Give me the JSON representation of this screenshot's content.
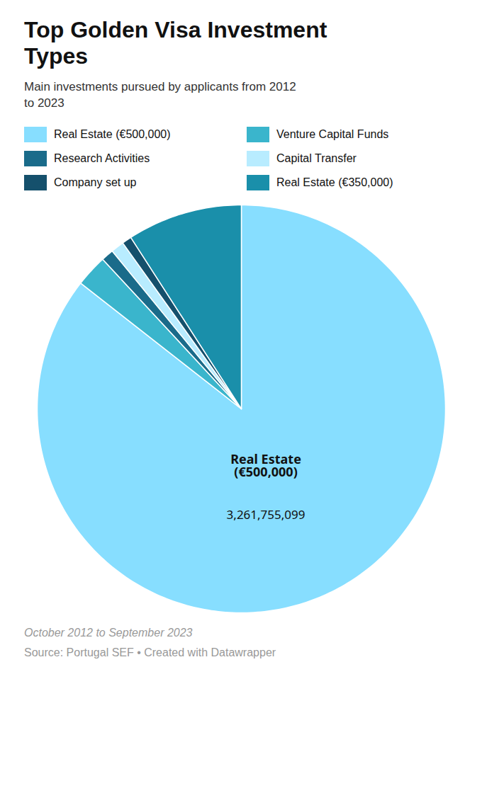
{
  "chart_data": {
    "type": "pie",
    "title": "Top Golden Visa Investment\nTypes",
    "subtitle": "Main investments pursued by applicants from 2012\nto 2023",
    "categories": [
      "Real Estate (€500,000)",
      "Venture Capital Funds",
      "Research Activities",
      "Capital Transfer",
      "Company set up",
      "Real Estate (€350,000)"
    ],
    "values": [
      3261755099,
      96822000,
      37386585,
      39609600,
      28895000,
      347108935
    ],
    "colors": [
      "#87DEFF",
      "#3ab5cc",
      "#1a6b8a",
      "#b8ecff",
      "#15506c",
      "#1a8faa"
    ],
    "annotations": [
      "Real Estate\n(€500,000)",
      "3,261,755,099"
    ],
    "caption": "October 2012 to September 2023",
    "source": "Source: Portugal SEF • Created with Datawrapper"
  }
}
